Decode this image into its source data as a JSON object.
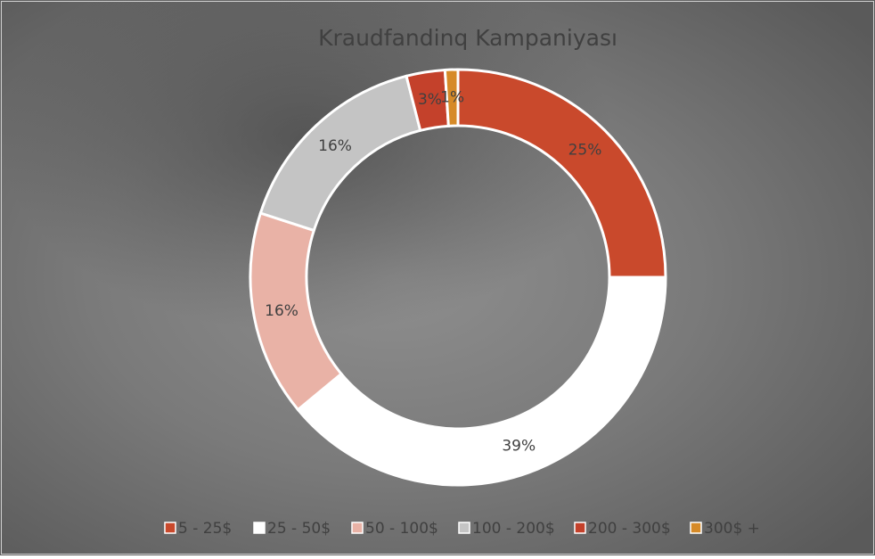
{
  "chart_data": {
    "type": "doughnut",
    "title": "Kraudfandinq Kampaniyası",
    "categories": [
      "5 - 25$",
      "25 - 50$",
      "50 - 100$",
      "100 - 200$",
      "200 - 300$",
      "300$ +"
    ],
    "values": [
      25,
      39,
      16,
      16,
      3,
      1
    ],
    "value_labels": [
      "25%",
      "39%",
      "16%",
      "16%",
      "3%",
      "1%"
    ],
    "colors": [
      "#c9492c",
      "#ffffff",
      "#e9b2a6",
      "#c4c4c4",
      "#c4412b",
      "#d68a28"
    ],
    "legend": "bottom"
  }
}
